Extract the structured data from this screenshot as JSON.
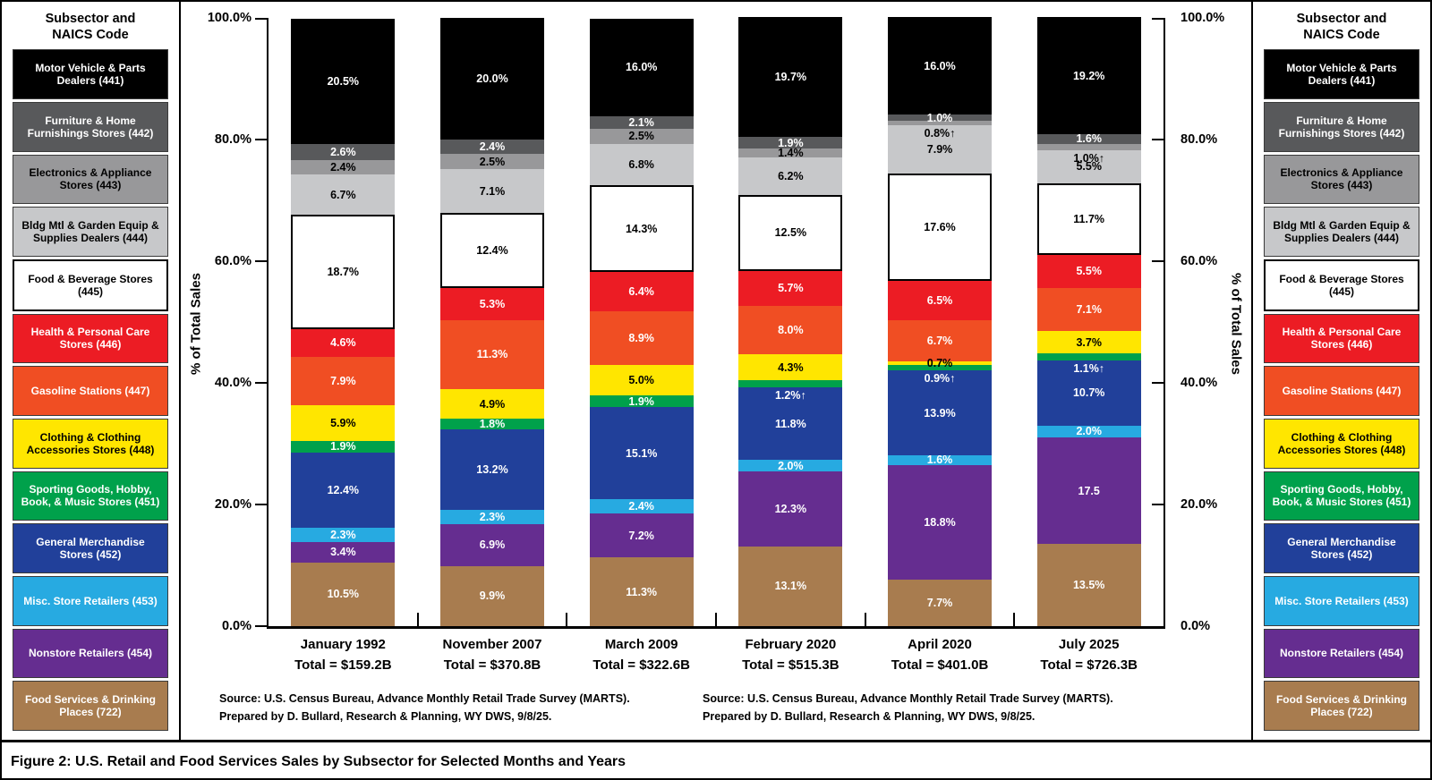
{
  "figure_caption": "Figure 2: U.S. Retail and Food Services Sales by Subsector for Selected Months and Years",
  "legend": {
    "title": "Subsector and\nNAICS Code",
    "items": [
      {
        "code": "441",
        "label": "Motor Vehicle & Parts Dealers (441)",
        "color": "#000000",
        "text_color": "#ffffff"
      },
      {
        "code": "442",
        "label": "Furniture & Home Furnishings Stores (442)",
        "color": "#58595b",
        "text_color": "#ffffff"
      },
      {
        "code": "443",
        "label": "Electronics & Appliance Stores (443)",
        "color": "#98989a",
        "text_color": "#000000"
      },
      {
        "code": "444",
        "label": "Bldg Mtl & Garden Equip & Supplies Dealers (444)",
        "color": "#c7c8ca",
        "text_color": "#000000"
      },
      {
        "code": "445",
        "label": "Food & Beverage Stores (445)",
        "color": "#ffffff",
        "text_color": "#000000"
      },
      {
        "code": "446",
        "label": "Health & Personal Care Stores (446)",
        "color": "#ec1c24",
        "text_color": "#ffffff"
      },
      {
        "code": "447",
        "label": "Gasoline Stations (447)",
        "color": "#f04e23",
        "text_color": "#ffffff"
      },
      {
        "code": "448",
        "label": "Clothing & Clothing Accessories Stores (448)",
        "color": "#ffe600",
        "text_color": "#000000"
      },
      {
        "code": "451",
        "label": "Sporting Goods, Hobby, Book, & Music Stores (451)",
        "color": "#00a14b",
        "text_color": "#ffffff"
      },
      {
        "code": "452",
        "label": "General Merchandise Stores (452)",
        "color": "#21409a",
        "text_color": "#ffffff"
      },
      {
        "code": "453",
        "label": "Misc. Store Retailers (453)",
        "color": "#27aae1",
        "text_color": "#ffffff"
      },
      {
        "code": "454",
        "label": "Nonstore Retailers (454)",
        "color": "#652d90",
        "text_color": "#ffffff"
      },
      {
        "code": "722",
        "label": "Food Services & Drinking Places (722)",
        "color": "#a87c4f",
        "text_color": "#ffffff"
      }
    ]
  },
  "axes": {
    "ylabel": "% of Total Sales",
    "yticks": [
      {
        "value": 100,
        "label": "100.0%"
      },
      {
        "value": 80,
        "label": "80.0%"
      },
      {
        "value": 60,
        "label": "60.0%"
      },
      {
        "value": 40,
        "label": "40.0%"
      },
      {
        "value": 20,
        "label": "20.0%"
      },
      {
        "value": 0,
        "label": "0.0%"
      }
    ]
  },
  "sources": {
    "line1": "Source: U.S. Census Bureau, Advance Monthly Retail Trade Survey (MARTS).",
    "line2": "Prepared by D. Bullard, Research & Planning, WY DWS, 9/8/25."
  },
  "chart_data": {
    "type": "bar",
    "stacked": true,
    "ylim": [
      0,
      100
    ],
    "unit": "percent of total sales",
    "arrow_glyph": "↑",
    "segment_order_bottom_to_top": [
      "722",
      "454",
      "453",
      "452",
      "451",
      "448",
      "447",
      "446",
      "445",
      "444",
      "443",
      "442",
      "441"
    ],
    "bars": [
      {
        "label": "January 1992",
        "total": "Total = $159.2B",
        "segments": [
          {
            "code": "722",
            "value": 10.5,
            "text": "10.5%"
          },
          {
            "code": "454",
            "value": 3.4,
            "text": "3.4%"
          },
          {
            "code": "453",
            "value": 2.3,
            "text": "2.3%"
          },
          {
            "code": "452",
            "value": 12.4,
            "text": "12.4%"
          },
          {
            "code": "451",
            "value": 1.9,
            "text": "1.9%"
          },
          {
            "code": "448",
            "value": 5.9,
            "text": "5.9%"
          },
          {
            "code": "447",
            "value": 7.9,
            "text": "7.9%"
          },
          {
            "code": "446",
            "value": 4.6,
            "text": "4.6%"
          },
          {
            "code": "445",
            "value": 18.7,
            "text": "18.7%"
          },
          {
            "code": "444",
            "value": 6.7,
            "text": "6.7%"
          },
          {
            "code": "443",
            "value": 2.4,
            "text": "2.4%"
          },
          {
            "code": "442",
            "value": 2.6,
            "text": "2.6%"
          },
          {
            "code": "441",
            "value": 20.5,
            "text": "20.5%"
          }
        ]
      },
      {
        "label": "November 2007",
        "total": "Total = $370.8B",
        "segments": [
          {
            "code": "722",
            "value": 9.9,
            "text": "9.9%"
          },
          {
            "code": "454",
            "value": 6.9,
            "text": "6.9%"
          },
          {
            "code": "453",
            "value": 2.3,
            "text": "2.3%"
          },
          {
            "code": "452",
            "value": 13.2,
            "text": "13.2%"
          },
          {
            "code": "451",
            "value": 1.8,
            "text": "1.8%"
          },
          {
            "code": "448",
            "value": 4.9,
            "text": "4.9%"
          },
          {
            "code": "447",
            "value": 11.3,
            "text": "11.3%"
          },
          {
            "code": "446",
            "value": 5.3,
            "text": "5.3%"
          },
          {
            "code": "445",
            "value": 12.4,
            "text": "12.4%"
          },
          {
            "code": "444",
            "value": 7.1,
            "text": "7.1%"
          },
          {
            "code": "443",
            "value": 2.5,
            "text": "2.5%"
          },
          {
            "code": "442",
            "value": 2.4,
            "text": "2.4%"
          },
          {
            "code": "441",
            "value": 20.0,
            "text": "20.0%"
          }
        ]
      },
      {
        "label": "March 2009",
        "total": "Total = $322.6B",
        "segments": [
          {
            "code": "722",
            "value": 11.3,
            "text": "11.3%"
          },
          {
            "code": "454",
            "value": 7.2,
            "text": "7.2%"
          },
          {
            "code": "453",
            "value": 2.4,
            "text": "2.4%"
          },
          {
            "code": "452",
            "value": 15.1,
            "text": "15.1%"
          },
          {
            "code": "451",
            "value": 1.9,
            "text": "1.9%"
          },
          {
            "code": "448",
            "value": 5.0,
            "text": "5.0%"
          },
          {
            "code": "447",
            "value": 8.9,
            "text": "8.9%"
          },
          {
            "code": "446",
            "value": 6.4,
            "text": "6.4%"
          },
          {
            "code": "445",
            "value": 14.3,
            "text": "14.3%"
          },
          {
            "code": "444",
            "value": 6.8,
            "text": "6.8%"
          },
          {
            "code": "443",
            "value": 2.5,
            "text": "2.5%"
          },
          {
            "code": "442",
            "value": 2.1,
            "text": "2.1%"
          },
          {
            "code": "441",
            "value": 16.0,
            "text": "16.0%"
          }
        ]
      },
      {
        "label": "February 2020",
        "total": "Total = $515.3B",
        "segments": [
          {
            "code": "722",
            "value": 13.1,
            "text": "13.1%"
          },
          {
            "code": "454",
            "value": 12.3,
            "text": "12.3%"
          },
          {
            "code": "453",
            "value": 2.0,
            "text": "2.0%"
          },
          {
            "code": "452",
            "value": 11.8,
            "text": "11.8%"
          },
          {
            "code": "451",
            "value": 1.2,
            "text": "1.2%",
            "arrow": true
          },
          {
            "code": "448",
            "value": 4.3,
            "text": "4.3%"
          },
          {
            "code": "447",
            "value": 8.0,
            "text": "8.0%"
          },
          {
            "code": "446",
            "value": 5.7,
            "text": "5.7%"
          },
          {
            "code": "445",
            "value": 12.5,
            "text": "12.5%"
          },
          {
            "code": "444",
            "value": 6.2,
            "text": "6.2%"
          },
          {
            "code": "443",
            "value": 1.4,
            "text": "1.4%"
          },
          {
            "code": "442",
            "value": 1.9,
            "text": "1.9%"
          },
          {
            "code": "441",
            "value": 19.7,
            "text": "19.7%"
          }
        ]
      },
      {
        "label": "April 2020",
        "total": "Total = $401.0B",
        "segments": [
          {
            "code": "722",
            "value": 7.7,
            "text": "7.7%"
          },
          {
            "code": "454",
            "value": 18.8,
            "text": "18.8%"
          },
          {
            "code": "453",
            "value": 1.6,
            "text": "1.6%"
          },
          {
            "code": "452",
            "value": 13.9,
            "text": "13.9%"
          },
          {
            "code": "451",
            "value": 0.9,
            "text": "0.9%",
            "arrow": true
          },
          {
            "code": "448",
            "value": 0.7,
            "text": "0.7%"
          },
          {
            "code": "447",
            "value": 6.7,
            "text": "6.7%"
          },
          {
            "code": "446",
            "value": 6.5,
            "text": "6.5%"
          },
          {
            "code": "445",
            "value": 17.6,
            "text": "17.6%"
          },
          {
            "code": "444",
            "value": 7.9,
            "text": "7.9%"
          },
          {
            "code": "443",
            "value": 0.8,
            "text": "0.8%",
            "arrow": true
          },
          {
            "code": "442",
            "value": 1.0,
            "text": "1.0%"
          },
          {
            "code": "441",
            "value": 16.0,
            "text": "16.0%"
          }
        ]
      },
      {
        "label": "July 2025",
        "total": "Total = $726.3B",
        "segments": [
          {
            "code": "722",
            "value": 13.5,
            "text": "13.5%"
          },
          {
            "code": "454",
            "value": 17.5,
            "text": "17.5"
          },
          {
            "code": "453",
            "value": 2.0,
            "text": "2.0%"
          },
          {
            "code": "452",
            "value": 10.7,
            "text": "10.7%"
          },
          {
            "code": "451",
            "value": 1.1,
            "text": "1.1%",
            "arrow": true
          },
          {
            "code": "448",
            "value": 3.7,
            "text": "3.7%"
          },
          {
            "code": "447",
            "value": 7.1,
            "text": "7.1%"
          },
          {
            "code": "446",
            "value": 5.5,
            "text": "5.5%"
          },
          {
            "code": "445",
            "value": 11.7,
            "text": "11.7%"
          },
          {
            "code": "444",
            "value": 5.5,
            "text": "5.5%"
          },
          {
            "code": "443",
            "value": 1.0,
            "text": "1.0%",
            "arrow": true
          },
          {
            "code": "442",
            "value": 1.6,
            "text": "1.6%"
          },
          {
            "code": "441",
            "value": 19.2,
            "text": "19.2%"
          }
        ]
      }
    ]
  }
}
